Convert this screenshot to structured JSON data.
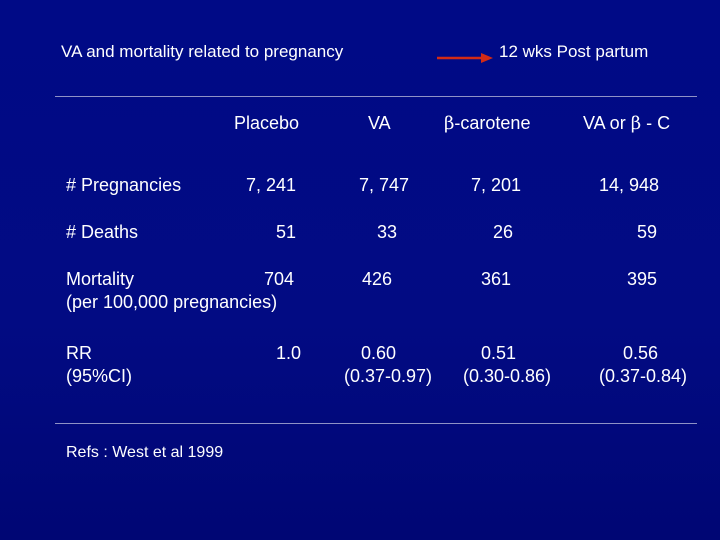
{
  "header": {
    "left": "VA and mortality related to pregnancy",
    "right": "12 wks Post partum",
    "arrow_color": "#d22b16"
  },
  "columns": {
    "placebo": "Placebo",
    "va": "VA",
    "beta_symbol": "β",
    "beta_carotene_suffix": "-carotene",
    "combined_prefix": "VA or",
    "combined_symbol": "β",
    "combined_suffix": "- C"
  },
  "rows": {
    "pregnancies": {
      "label": "# Pregnancies",
      "placebo": "7, 241",
      "va": "7, 747",
      "beta": "7, 201",
      "combined": "14, 948"
    },
    "deaths": {
      "label": "# Deaths",
      "placebo": "51",
      "va": "33",
      "beta": "26",
      "combined": "59"
    },
    "mortality": {
      "label_line1": "Mortality",
      "label_line2": "(per 100,000 pregnancies)",
      "placebo": "704",
      "va": "426",
      "beta": "361",
      "combined": "395"
    },
    "rr": {
      "label_line1": "RR",
      "label_line2": "(95%CI)",
      "placebo": "1.0",
      "va": "0.60",
      "va_ci": "(0.37-0.97)",
      "beta": "0.51",
      "beta_ci": "(0.30-0.86)",
      "combined": "0.56",
      "combined_ci": "(0.37-0.84)"
    }
  },
  "footer": {
    "refs": "Refs : West et al 1999"
  }
}
